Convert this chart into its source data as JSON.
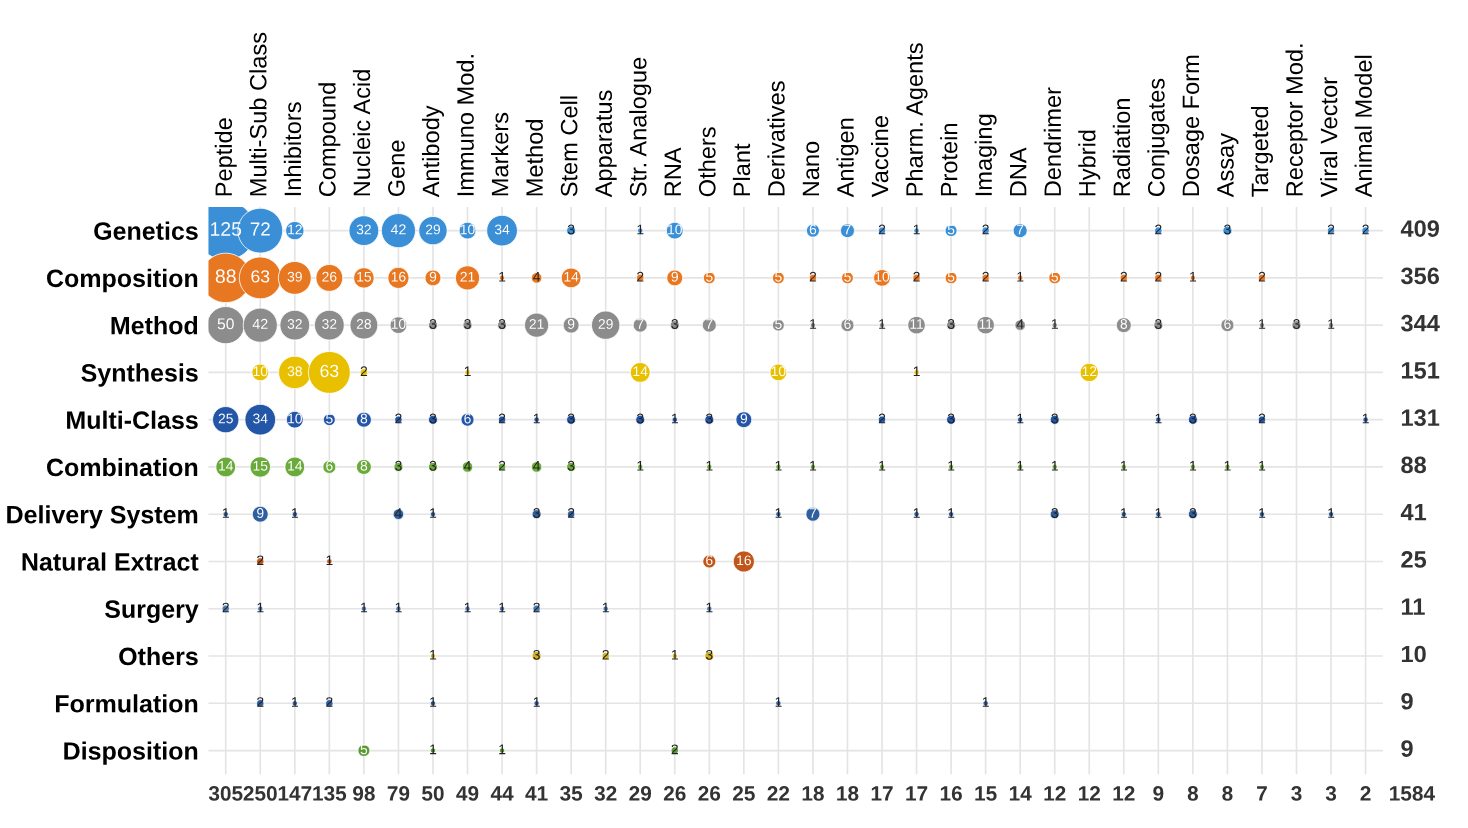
{
  "chart_data": {
    "type": "heatmap",
    "categories": [
      "Peptide",
      "Multi-Sub Class",
      "Inhibitors",
      "Compound",
      "Nucleic Acid",
      "Gene",
      "Antibody",
      "Immuno Mod.",
      "Markers",
      "Method",
      "Stem Cell",
      "Apparatus",
      "Str. Analogue",
      "RNA",
      "Others",
      "Plant",
      "Derivatives",
      "Nano",
      "Antigen",
      "Vaccine",
      "Pharm. Agents",
      "Protein",
      "Imaging",
      "DNA",
      "Dendrimer",
      "Hybrid",
      "Radiation",
      "Conjugates",
      "Dosage Form",
      "Assay",
      "Targeted",
      "Receptor Mod.",
      "Viral Vector",
      "Animal Model"
    ],
    "y_categories": [
      "Genetics",
      "Composition",
      "Method",
      "Synthesis",
      "Multi-Class",
      "Combination",
      "Delivery System",
      "Natural Extract",
      "Surgery",
      "Others",
      "Formulation",
      "Disposition"
    ],
    "y2_categories": [
      "409",
      "356",
      "344",
      "151",
      "131",
      "88",
      "41",
      "25",
      "11",
      "10",
      "9",
      "9"
    ],
    "totals": [
      "305",
      "250",
      "147",
      "135",
      "98",
      "79",
      "50",
      "49",
      "44",
      "41",
      "35",
      "32",
      "29",
      "26",
      "26",
      "25",
      "22",
      "18",
      "18",
      "17",
      "17",
      "16",
      "15",
      "14",
      "12",
      "12",
      "12",
      "9",
      "8",
      "8",
      "7",
      "3",
      "3",
      "2"
    ],
    "annotations": [
      "1584"
    ],
    "grid": true,
    "data_labels": true,
    "colors": [
      "#3a8fd6",
      "#e87722",
      "#8c8c8c",
      "#e8c000",
      "#2456a8",
      "#6aaa3a",
      "#2f5f9f",
      "#c0561a",
      "#4a7ab5",
      "#d4b020",
      "#3060a0",
      "#5a9a30"
    ],
    "cells": [
      [
        125,
        72,
        12,
        null,
        32,
        42,
        29,
        10,
        34,
        null,
        3,
        null,
        1,
        10,
        null,
        null,
        null,
        6,
        7,
        2,
        1,
        5,
        2,
        7,
        null,
        null,
        null,
        2,
        null,
        3,
        null,
        null,
        2,
        2
      ],
      [
        88,
        63,
        39,
        26,
        15,
        16,
        9,
        21,
        1,
        4,
        14,
        null,
        2,
        9,
        5,
        null,
        5,
        2,
        5,
        10,
        2,
        5,
        2,
        1,
        5,
        null,
        2,
        2,
        1,
        null,
        2,
        null,
        null,
        null
      ],
      [
        50,
        42,
        32,
        32,
        28,
        10,
        3,
        3,
        3,
        21,
        9,
        29,
        7,
        3,
        7,
        null,
        5,
        1,
        6,
        1,
        11,
        3,
        11,
        4,
        1,
        null,
        8,
        3,
        null,
        6,
        1,
        3,
        1,
        null
      ],
      [
        null,
        10,
        38,
        63,
        2,
        null,
        null,
        1,
        null,
        null,
        null,
        null,
        14,
        null,
        null,
        null,
        10,
        null,
        null,
        null,
        1,
        null,
        null,
        null,
        null,
        12,
        null,
        null,
        null,
        null,
        null,
        null,
        null,
        null
      ],
      [
        25,
        34,
        10,
        5,
        8,
        2,
        3,
        6,
        2,
        1,
        3,
        null,
        3,
        1,
        3,
        9,
        null,
        null,
        null,
        2,
        null,
        3,
        null,
        1,
        3,
        null,
        null,
        1,
        3,
        null,
        2,
        null,
        null,
        1
      ],
      [
        14,
        15,
        14,
        6,
        8,
        3,
        3,
        4,
        2,
        4,
        3,
        null,
        1,
        null,
        1,
        null,
        1,
        1,
        null,
        1,
        null,
        1,
        null,
        1,
        1,
        null,
        1,
        null,
        1,
        1,
        1,
        null,
        null,
        null
      ],
      [
        1,
        9,
        1,
        null,
        null,
        4,
        1,
        null,
        null,
        3,
        2,
        null,
        null,
        null,
        null,
        null,
        1,
        7,
        null,
        null,
        1,
        1,
        null,
        null,
        3,
        null,
        1,
        1,
        3,
        null,
        1,
        null,
        1,
        null
      ],
      [
        null,
        2,
        null,
        1,
        null,
        null,
        null,
        null,
        null,
        null,
        null,
        null,
        null,
        null,
        6,
        16,
        null,
        null,
        null,
        null,
        null,
        null,
        null,
        null,
        null,
        null,
        null,
        null,
        null,
        null,
        null,
        null,
        null,
        null
      ],
      [
        2,
        1,
        null,
        null,
        1,
        1,
        null,
        1,
        1,
        2,
        null,
        1,
        null,
        null,
        1,
        null,
        null,
        null,
        null,
        null,
        null,
        null,
        null,
        null,
        null,
        null,
        null,
        null,
        null,
        null,
        null,
        null,
        null,
        null
      ],
      [
        null,
        null,
        null,
        null,
        null,
        null,
        1,
        null,
        null,
        3,
        null,
        2,
        null,
        1,
        3,
        null,
        null,
        null,
        null,
        null,
        null,
        null,
        null,
        null,
        null,
        null,
        null,
        null,
        null,
        null,
        null,
        null,
        null,
        null
      ],
      [
        null,
        2,
        1,
        2,
        null,
        null,
        1,
        null,
        null,
        1,
        null,
        null,
        null,
        null,
        null,
        null,
        1,
        null,
        null,
        null,
        null,
        null,
        1,
        null,
        null,
        null,
        null,
        null,
        null,
        null,
        null,
        null,
        null,
        null
      ],
      [
        null,
        null,
        null,
        null,
        5,
        null,
        1,
        null,
        1,
        null,
        null,
        null,
        null,
        2,
        null,
        null,
        null,
        null,
        null,
        null,
        null,
        null,
        null,
        null,
        null,
        null,
        null,
        null,
        null,
        null,
        null,
        null,
        null,
        null
      ]
    ]
  }
}
